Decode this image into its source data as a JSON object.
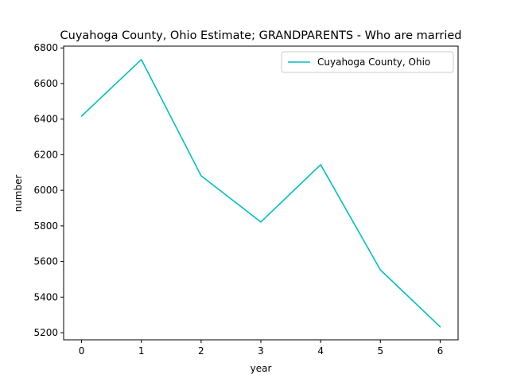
{
  "chart_data": {
    "type": "line",
    "title": "Cuyahoga County, Ohio Estimate; GRANDPARENTS - Who are married",
    "xlabel": "year",
    "ylabel": "number",
    "x": [
      0,
      1,
      2,
      3,
      4,
      5,
      6
    ],
    "x_ticks": [
      0,
      1,
      2,
      3,
      4,
      5,
      6
    ],
    "y_ticks": [
      5200,
      5400,
      5600,
      5800,
      6000,
      6200,
      6400,
      6600,
      6800
    ],
    "xlim": [
      -0.3,
      6.3
    ],
    "ylim": [
      5160,
      6810
    ],
    "grid": false,
    "legend_position": "top-right",
    "series": [
      {
        "name": "Cuyahoga County, Ohio",
        "color": "#00bfbf",
        "values": [
          6417,
          6735,
          6082,
          5822,
          6144,
          5553,
          5233
        ]
      }
    ]
  }
}
